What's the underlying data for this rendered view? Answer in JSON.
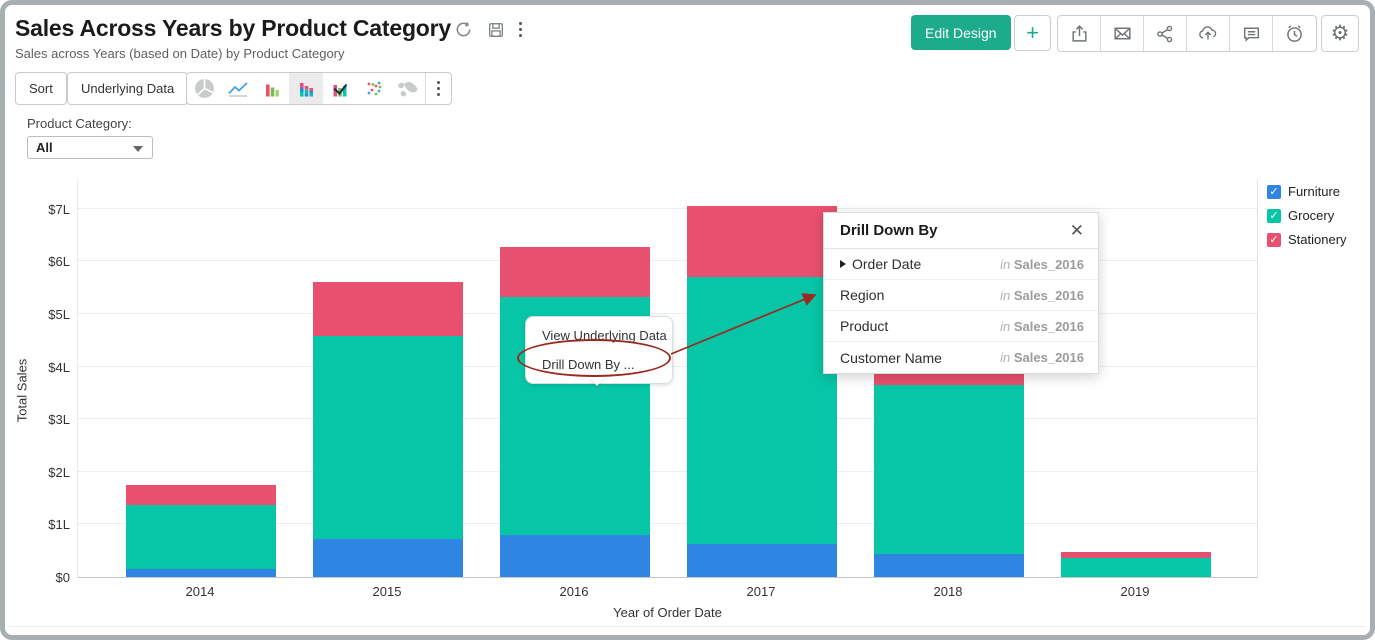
{
  "header": {
    "title": "Sales Across Years by Product Category",
    "subtitle": "Sales across Years (based on Date) by Product Category",
    "edit_design_label": "Edit Design",
    "action_icons": [
      "export",
      "email",
      "share",
      "publish",
      "comment",
      "reminder"
    ],
    "title_icons": [
      "refresh",
      "save",
      "more"
    ],
    "settings_icon": "settings",
    "add_icon_glyph": "+"
  },
  "toolbar": {
    "sort_label": "Sort",
    "underlying_data_label": "Underlying Data",
    "chart_types": [
      {
        "name": "pie",
        "selected": false
      },
      {
        "name": "line",
        "selected": false
      },
      {
        "name": "bar",
        "selected": false
      },
      {
        "name": "stacked-bar",
        "selected": true
      },
      {
        "name": "combo",
        "selected": false
      },
      {
        "name": "scatter",
        "selected": false
      },
      {
        "name": "map",
        "selected": false
      }
    ]
  },
  "filter": {
    "label": "Product Category:",
    "value": "All"
  },
  "legend": [
    {
      "label": "Furniture",
      "color": "#2e86e2",
      "checked": true
    },
    {
      "label": "Grocery",
      "color": "#07c6a7",
      "checked": true
    },
    {
      "label": "Stationery",
      "color": "#e8506f",
      "checked": true
    }
  ],
  "context_menu": {
    "items": [
      "View Underlying Data",
      "Drill Down By ..."
    ]
  },
  "drilldown_popup": {
    "title": "Drill Down By",
    "close_glyph": "✕",
    "items": [
      {
        "label": "Order Date",
        "expandable": true,
        "source_prefix": "in",
        "source": "Sales_2016"
      },
      {
        "label": "Region",
        "expandable": false,
        "source_prefix": "in",
        "source": "Sales_2016"
      },
      {
        "label": "Product",
        "expandable": false,
        "source_prefix": "in",
        "source": "Sales_2016"
      },
      {
        "label": "Customer Name",
        "expandable": false,
        "source_prefix": "in",
        "source": "Sales_2016"
      }
    ]
  },
  "chart_data": {
    "type": "bar",
    "stacked": true,
    "categories": [
      "2014",
      "2015",
      "2016",
      "2017",
      "2018",
      "2019"
    ],
    "series": [
      {
        "name": "Furniture",
        "color": "#2e86e2",
        "values": [
          0.15,
          0.72,
          0.8,
          0.63,
          0.44,
          0.0
        ]
      },
      {
        "name": "Grocery",
        "color": "#07c6a7",
        "values": [
          1.22,
          3.86,
          4.52,
          5.07,
          3.21,
          0.36
        ]
      },
      {
        "name": "Stationery",
        "color": "#e8506f",
        "values": [
          0.38,
          1.03,
          0.95,
          1.35,
          0.23,
          0.11
        ]
      }
    ],
    "totals": [
      1.75,
      5.61,
      6.27,
      7.05,
      3.88,
      0.47
    ],
    "xlabel": "Year of Order Date",
    "ylabel": "Total Sales",
    "y_ticks": [
      "$7L",
      "$6L",
      "$5L",
      "$4L",
      "$3L",
      "$2L",
      "$1L",
      "$0"
    ],
    "ylim": [
      0,
      7.57
    ],
    "grid": true,
    "legend_position": "right"
  },
  "colors": {
    "accent_green": "#1cab8b",
    "annotation_red": "#9c2a1e"
  }
}
